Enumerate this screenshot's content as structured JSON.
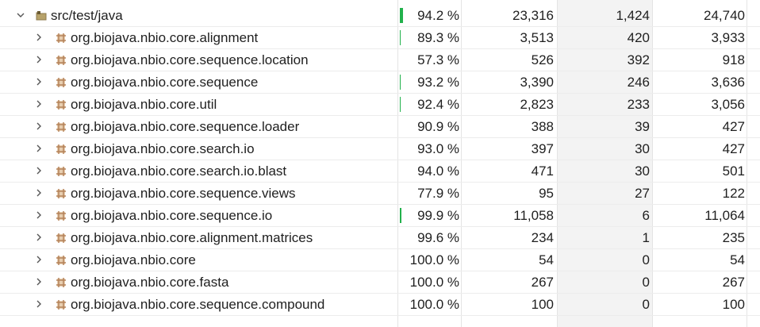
{
  "rows": [
    {
      "level": 0,
      "expanded": true,
      "icon": "source-folder-icon",
      "name": "src/test/java",
      "coverage": "94.2 %",
      "covered": "23,316",
      "missed": "1,424",
      "total": "24,740",
      "bar": 0.94
    },
    {
      "level": 1,
      "expanded": false,
      "icon": "package-icon",
      "name": "org.biojava.nbio.core.alignment",
      "coverage": "89.3 %",
      "covered": "3,513",
      "missed": "420",
      "total": "3,933",
      "bar": 0.15
    },
    {
      "level": 1,
      "expanded": false,
      "icon": "package-icon",
      "name": "org.biojava.nbio.core.sequence.location",
      "coverage": "57.3 %",
      "covered": "526",
      "missed": "392",
      "total": "918",
      "bar": 0
    },
    {
      "level": 1,
      "expanded": false,
      "icon": "package-icon",
      "name": "org.biojava.nbio.core.sequence",
      "coverage": "93.2 %",
      "covered": "3,390",
      "missed": "246",
      "total": "3,636",
      "bar": 0.15
    },
    {
      "level": 1,
      "expanded": false,
      "icon": "package-icon",
      "name": "org.biojava.nbio.core.util",
      "coverage": "92.4 %",
      "covered": "2,823",
      "missed": "233",
      "total": "3,056",
      "bar": 0.12
    },
    {
      "level": 1,
      "expanded": false,
      "icon": "package-icon",
      "name": "org.biojava.nbio.core.sequence.loader",
      "coverage": "90.9 %",
      "covered": "388",
      "missed": "39",
      "total": "427",
      "bar": 0
    },
    {
      "level": 1,
      "expanded": false,
      "icon": "package-icon",
      "name": "org.biojava.nbio.core.search.io",
      "coverage": "93.0 %",
      "covered": "397",
      "missed": "30",
      "total": "427",
      "bar": 0
    },
    {
      "level": 1,
      "expanded": false,
      "icon": "package-icon",
      "name": "org.biojava.nbio.core.search.io.blast",
      "coverage": "94.0 %",
      "covered": "471",
      "missed": "30",
      "total": "501",
      "bar": 0
    },
    {
      "level": 1,
      "expanded": false,
      "icon": "package-icon",
      "name": "org.biojava.nbio.core.sequence.views",
      "coverage": "77.9 %",
      "covered": "95",
      "missed": "27",
      "total": "122",
      "bar": 0
    },
    {
      "level": 1,
      "expanded": false,
      "icon": "package-icon",
      "name": "org.biojava.nbio.core.sequence.io",
      "coverage": "99.9 %",
      "covered": "11,058",
      "missed": "6",
      "total": "11,064",
      "bar": 0.45
    },
    {
      "level": 1,
      "expanded": false,
      "icon": "package-icon",
      "name": "org.biojava.nbio.core.alignment.matrices",
      "coverage": "99.6 %",
      "covered": "234",
      "missed": "1",
      "total": "235",
      "bar": 0
    },
    {
      "level": 1,
      "expanded": false,
      "icon": "package-icon",
      "name": "org.biojava.nbio.core",
      "coverage": "100.0 %",
      "covered": "54",
      "missed": "0",
      "total": "54",
      "bar": 0
    },
    {
      "level": 1,
      "expanded": false,
      "icon": "package-icon",
      "name": "org.biojava.nbio.core.fasta",
      "coverage": "100.0 %",
      "covered": "267",
      "missed": "0",
      "total": "267",
      "bar": 0
    },
    {
      "level": 1,
      "expanded": false,
      "icon": "package-icon",
      "name": "org.biojava.nbio.core.sequence.compound",
      "coverage": "100.0 %",
      "covered": "100",
      "missed": "0",
      "total": "100",
      "bar": 0
    }
  ],
  "colors": {
    "coverage_bar": "#22b14c",
    "package_icon": "#b5835a",
    "folder_icon": "#8d7a4e",
    "missed_column_bg": "#f3f3f3"
  }
}
